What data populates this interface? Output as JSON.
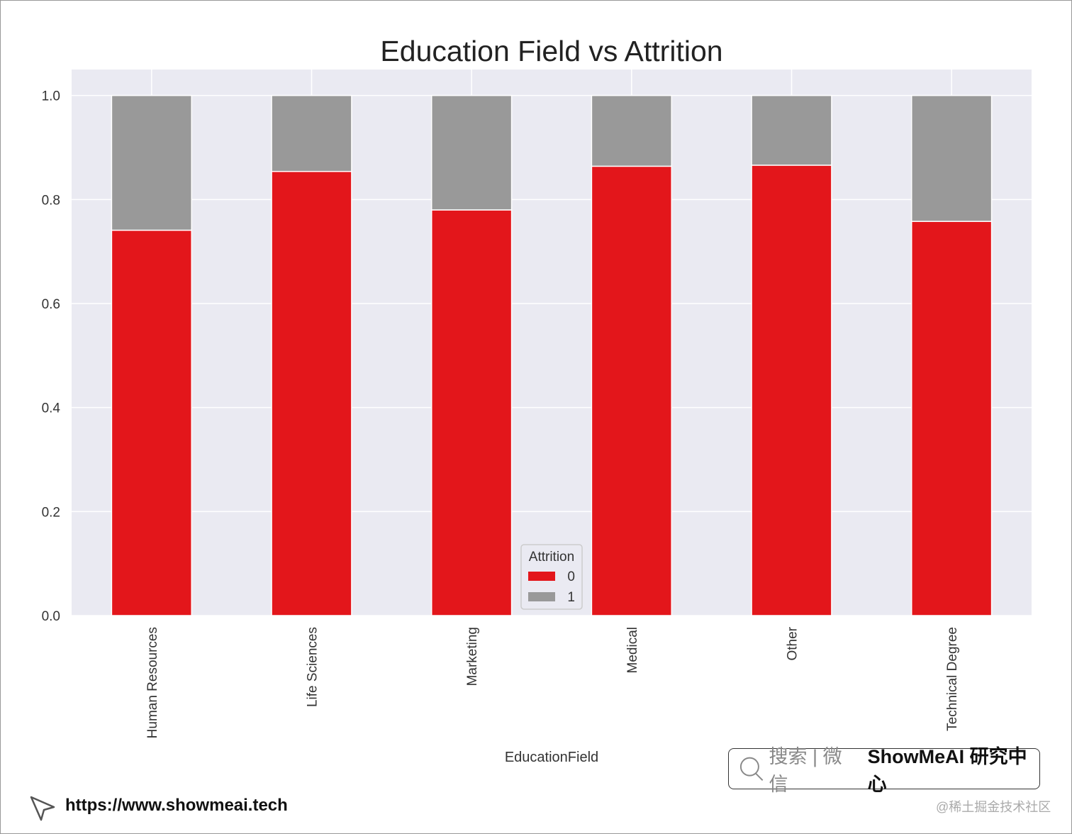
{
  "chart_data": {
    "type": "bar",
    "stacked": true,
    "title": "Education Field vs Attrition",
    "xlabel": "EducationField",
    "ylabel": "",
    "categories": [
      "Human Resources",
      "Life Sciences",
      "Marketing",
      "Medical",
      "Other",
      "Technical Degree"
    ],
    "series": [
      {
        "name": "0",
        "color": "#e3161b",
        "values": [
          0.741,
          0.854,
          0.78,
          0.864,
          0.866,
          0.758
        ]
      },
      {
        "name": "1",
        "color": "#999999",
        "values": [
          0.259,
          0.146,
          0.22,
          0.136,
          0.134,
          0.242
        ]
      }
    ],
    "ylim": [
      0,
      1.05
    ],
    "yticks": [
      "0.0",
      "0.2",
      "0.4",
      "0.6",
      "0.8",
      "1.0"
    ],
    "grid": true,
    "background": "#eaeaf2",
    "legend": {
      "title": "Attrition",
      "placement": "bottom-center"
    }
  },
  "watermark": {
    "search_prefix": "搜索 | 微信",
    "brand": "ShowMeAI 研究中心",
    "url": "https://www.showmeai.tech",
    "credit": "@稀土掘金技术社区"
  }
}
